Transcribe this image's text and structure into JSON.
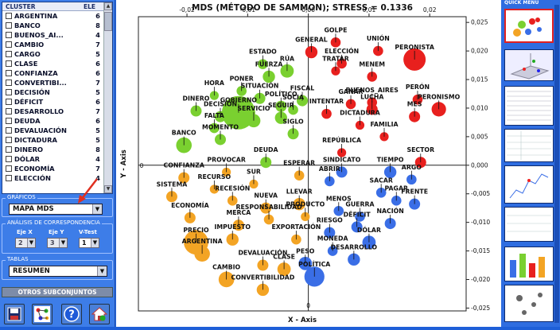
{
  "list": {
    "col_cluster": "CLUSTER",
    "col_ele": "ELE",
    "items": [
      {
        "name": "ARGENTINA",
        "count": "6"
      },
      {
        "name": "BANCO",
        "count": "8"
      },
      {
        "name": "BUENOS_AI...",
        "count": "4"
      },
      {
        "name": "CAMBIO",
        "count": "7"
      },
      {
        "name": "CARGO",
        "count": "5"
      },
      {
        "name": "CLASE",
        "count": "6"
      },
      {
        "name": "CONFIANZA",
        "count": "6"
      },
      {
        "name": "CONVERTIBI...",
        "count": "7"
      },
      {
        "name": "DECISIÓN",
        "count": "5"
      },
      {
        "name": "DÉFICIT",
        "count": "6"
      },
      {
        "name": "DESARROLLO",
        "count": "7"
      },
      {
        "name": "DEUDA",
        "count": "6"
      },
      {
        "name": "DEVALUACIÓN",
        "count": "5"
      },
      {
        "name": "DICTADURA",
        "count": "5"
      },
      {
        "name": "DINERO",
        "count": "8"
      },
      {
        "name": "DÓLAR",
        "count": "4"
      },
      {
        "name": "ECONOMÍA",
        "count": "7"
      },
      {
        "name": "ELECCIÓN",
        "count": "4"
      }
    ]
  },
  "graficos": {
    "title": "GRÁFICOS",
    "value": "MAPA  MDS"
  },
  "analisis": {
    "title": "ANÁLISIS DE CORRESPONDENCIA",
    "eje_x_label": "Eje X",
    "eje_y_label": "Eje Y",
    "vtest_label": "V-Test",
    "eje_x": "2",
    "eje_y": "3",
    "vtest": "1"
  },
  "tablas": {
    "title": "TABLAS",
    "value": "RESUMEN"
  },
  "otros_button": "OTROS SUBCONJUNTOS",
  "quick_menu": "QUICK MENU",
  "colors": {
    "red": "#e8201e",
    "green": "#7ad030",
    "orange": "#f3a424",
    "blue": "#3a6ee6",
    "accent": "#e03020"
  },
  "chart_data": {
    "type": "scatter",
    "title": "MDS (MÉTODO DE SAMMON); STRESS = 0.1336",
    "xlabel": "X - Axis",
    "ylabel": "Y - Axis",
    "xlim": [
      -0.028,
      0.026
    ],
    "ylim": [
      -0.0255,
      0.026
    ],
    "xticks": [
      {
        "v": -0.02,
        "t": "-0,02"
      },
      {
        "v": -0.01,
        "t": "-0,01"
      },
      {
        "v": 0,
        "t": "0,00"
      },
      {
        "v": 0.01,
        "t": "0,01"
      },
      {
        "v": 0.02,
        "t": "0,02"
      }
    ],
    "yticks": [
      {
        "v": 0.025,
        "t": "0,025"
      },
      {
        "v": 0.02,
        "t": "0,020"
      },
      {
        "v": 0.015,
        "t": "0,015"
      },
      {
        "v": 0.01,
        "t": "0,010"
      },
      {
        "v": 0.005,
        "t": "0,005"
      },
      {
        "v": 0,
        "t": "0,000"
      },
      {
        "v": -0.005,
        "t": "-0,005"
      },
      {
        "v": -0.01,
        "t": "-0,010"
      },
      {
        "v": -0.015,
        "t": "-0,015"
      },
      {
        "v": -0.02,
        "t": "-0,020"
      },
      {
        "v": -0.025,
        "t": "-0,025"
      }
    ],
    "points": [
      {
        "label": "ESTADO",
        "x": -0.0075,
        "y": 0.0177,
        "s": 0.9,
        "c": "green"
      },
      {
        "label": "RÚA",
        "x": -0.0035,
        "y": 0.0165,
        "s": 1.2,
        "c": "green"
      },
      {
        "label": "FUERZA",
        "x": -0.0065,
        "y": 0.0155,
        "s": 1.1,
        "c": "green"
      },
      {
        "label": "PONER",
        "x": -0.011,
        "y": 0.013,
        "s": 0.9,
        "c": "green"
      },
      {
        "label": "HORA",
        "x": -0.0155,
        "y": 0.0122,
        "s": 0.8,
        "c": "green"
      },
      {
        "label": "SITUACIÓN",
        "x": -0.008,
        "y": 0.0117,
        "s": 1.0,
        "c": "green"
      },
      {
        "label": "GOBIERNO",
        "x": -0.0115,
        "y": 0.0092,
        "s": 3.0,
        "c": "green"
      },
      {
        "label": "POLÍTICO",
        "x": -0.0045,
        "y": 0.0103,
        "s": 1.0,
        "c": "green"
      },
      {
        "label": "FISCAL",
        "x": -0.001,
        "y": 0.0113,
        "s": 1.0,
        "c": "green"
      },
      {
        "label": "SOCIA",
        "x": -0.0025,
        "y": 0.0097,
        "s": 0.9,
        "c": "green"
      },
      {
        "label": "DINERO",
        "x": -0.0185,
        "y": 0.0095,
        "s": 1.0,
        "c": "green"
      },
      {
        "label": "DECISIÓN",
        "x": -0.0145,
        "y": 0.0085,
        "s": 1.0,
        "c": "green"
      },
      {
        "label": "FALTA",
        "x": -0.0155,
        "y": 0.0065,
        "s": 0.9,
        "c": "green"
      },
      {
        "label": "SERVICIO",
        "x": -0.009,
        "y": 0.0078,
        "s": 1.2,
        "c": "green"
      },
      {
        "label": "SEGUIR",
        "x": -0.0045,
        "y": 0.0083,
        "s": 1.1,
        "c": "green"
      },
      {
        "label": "BANCO",
        "x": -0.0205,
        "y": 0.0035,
        "s": 1.4,
        "c": "green"
      },
      {
        "label": "MOMENTO",
        "x": -0.0145,
        "y": 0.0045,
        "s": 1.0,
        "c": "green"
      },
      {
        "label": "SIGLO",
        "x": -0.0025,
        "y": 0.0055,
        "s": 1.0,
        "c": "green"
      },
      {
        "label": "DEUDA",
        "x": -0.007,
        "y": 0.0005,
        "s": 1.0,
        "c": "green"
      },
      {
        "label": "GOLPE",
        "x": 0.0045,
        "y": 0.0215,
        "s": 0.9,
        "c": "red"
      },
      {
        "label": "GENERAL",
        "x": 0.0005,
        "y": 0.0198,
        "s": 1.1,
        "c": "red"
      },
      {
        "label": "UNIÓN",
        "x": 0.0115,
        "y": 0.02,
        "s": 0.9,
        "c": "red"
      },
      {
        "label": "PERONISTA",
        "x": 0.0175,
        "y": 0.0185,
        "s": 2.0,
        "c": "red"
      },
      {
        "label": "ELECCIÓN",
        "x": 0.0055,
        "y": 0.0178,
        "s": 0.9,
        "c": "red"
      },
      {
        "label": "TRATAR",
        "x": 0.0045,
        "y": 0.0165,
        "s": 0.8,
        "c": "red"
      },
      {
        "label": "MENEM",
        "x": 0.0105,
        "y": 0.0155,
        "s": 0.9,
        "c": "red"
      },
      {
        "label": "PERÓN",
        "x": 0.018,
        "y": 0.0115,
        "s": 0.9,
        "c": "red"
      },
      {
        "label": "PERONISMO",
        "x": 0.0215,
        "y": 0.0098,
        "s": 1.3,
        "c": "red"
      },
      {
        "label": "BUENOS_AIRES",
        "x": 0.0105,
        "y": 0.011,
        "s": 0.9,
        "c": "red"
      },
      {
        "label": "GANAR",
        "x": 0.007,
        "y": 0.0107,
        "s": 0.9,
        "c": "red"
      },
      {
        "label": "INTENTAR",
        "x": 0.003,
        "y": 0.009,
        "s": 0.9,
        "c": "red"
      },
      {
        "label": "LUCHA",
        "x": 0.0105,
        "y": 0.0098,
        "s": 1.0,
        "c": "red"
      },
      {
        "label": "MES",
        "x": 0.0175,
        "y": 0.0085,
        "s": 1.0,
        "c": "red"
      },
      {
        "label": "DICTADURA",
        "x": 0.0085,
        "y": 0.007,
        "s": 0.8,
        "c": "red"
      },
      {
        "label": "FAMILIA",
        "x": 0.0125,
        "y": 0.005,
        "s": 0.8,
        "c": "red"
      },
      {
        "label": "REPÚBLICA",
        "x": 0.0055,
        "y": 0.0022,
        "s": 0.8,
        "c": "red"
      },
      {
        "label": "SECTOR",
        "x": 0.0185,
        "y": 0.0005,
        "s": 1.0,
        "c": "red"
      },
      {
        "label": "PROVOCAR",
        "x": -0.0135,
        "y": -0.0012,
        "s": 0.8,
        "c": "orange"
      },
      {
        "label": "CONFIANZA",
        "x": -0.0205,
        "y": -0.0022,
        "s": 1.0,
        "c": "orange"
      },
      {
        "label": "RECURSO",
        "x": -0.0155,
        "y": -0.0042,
        "s": 0.8,
        "c": "orange"
      },
      {
        "label": "SUR",
        "x": -0.009,
        "y": -0.0033,
        "s": 0.8,
        "c": "orange"
      },
      {
        "label": "ESPERAR",
        "x": -0.0015,
        "y": -0.0018,
        "s": 0.9,
        "c": "orange"
      },
      {
        "label": "SISTEMA",
        "x": -0.0225,
        "y": -0.0055,
        "s": 1.0,
        "c": "orange"
      },
      {
        "label": "RECESIÓN",
        "x": -0.0125,
        "y": -0.0062,
        "s": 0.9,
        "c": "orange"
      },
      {
        "label": "ECONOMÍA",
        "x": -0.0195,
        "y": -0.0092,
        "s": 1.0,
        "c": "orange"
      },
      {
        "label": "NUEVA",
        "x": -0.007,
        "y": -0.0075,
        "s": 1.0,
        "c": "orange"
      },
      {
        "label": "LLEVAR",
        "x": -0.0015,
        "y": -0.0068,
        "s": 1.1,
        "c": "orange"
      },
      {
        "label": "MERCA",
        "x": -0.0115,
        "y": -0.0105,
        "s": 1.0,
        "c": "orange"
      },
      {
        "label": "RESPONSABILIDAD",
        "x": -0.0065,
        "y": -0.0095,
        "s": 0.9,
        "c": "orange"
      },
      {
        "label": "PRODUCTO",
        "x": -0.0005,
        "y": -0.009,
        "s": 0.8,
        "c": "orange"
      },
      {
        "label": "PRECIO",
        "x": -0.0185,
        "y": -0.0135,
        "s": 2.2,
        "c": "orange"
      },
      {
        "label": "IMPUESTO",
        "x": -0.0125,
        "y": -0.013,
        "s": 1.1,
        "c": "orange"
      },
      {
        "label": "ARGENTINA",
        "x": -0.0175,
        "y": -0.0155,
        "s": 1.4,
        "c": "orange"
      },
      {
        "label": "EXPORTACIÓN",
        "x": -0.002,
        "y": -0.013,
        "s": 0.9,
        "c": "orange"
      },
      {
        "label": "DEVALUACIÓN",
        "x": -0.0075,
        "y": -0.0175,
        "s": 1.0,
        "c": "orange"
      },
      {
        "label": "CLASE",
        "x": -0.004,
        "y": -0.0182,
        "s": 1.2,
        "c": "orange"
      },
      {
        "label": "CAMBIO",
        "x": -0.0135,
        "y": -0.02,
        "s": 1.4,
        "c": "orange"
      },
      {
        "label": "CONVERTIBILIDAD",
        "x": -0.0075,
        "y": -0.0218,
        "s": 1.1,
        "c": "orange"
      },
      {
        "label": "SINDICATO",
        "x": 0.0055,
        "y": -0.0012,
        "s": 1.0,
        "c": "blue"
      },
      {
        "label": "TIEMPO",
        "x": 0.0135,
        "y": -0.0012,
        "s": 1.1,
        "c": "blue"
      },
      {
        "label": "ABRIR",
        "x": 0.0035,
        "y": -0.0028,
        "s": 0.9,
        "c": "blue"
      },
      {
        "label": "ARGO",
        "x": 0.017,
        "y": -0.0025,
        "s": 0.9,
        "c": "blue"
      },
      {
        "label": "SACAR",
        "x": 0.012,
        "y": -0.0048,
        "s": 0.9,
        "c": "blue"
      },
      {
        "label": "PAGAR",
        "x": 0.0145,
        "y": -0.0062,
        "s": 0.9,
        "c": "blue"
      },
      {
        "label": "FRENTE",
        "x": 0.0175,
        "y": -0.0068,
        "s": 1.0,
        "c": "blue"
      },
      {
        "label": "MENOS",
        "x": 0.005,
        "y": -0.008,
        "s": 0.9,
        "c": "blue"
      },
      {
        "label": "GUERRA",
        "x": 0.0085,
        "y": -0.009,
        "s": 0.9,
        "c": "blue"
      },
      {
        "label": "DÉFICIT",
        "x": 0.008,
        "y": -0.0108,
        "s": 1.0,
        "c": "blue"
      },
      {
        "label": "NACIÓN",
        "x": 0.0135,
        "y": -0.0102,
        "s": 1.0,
        "c": "blue"
      },
      {
        "label": "RIESGO",
        "x": 0.0035,
        "y": -0.0118,
        "s": 1.0,
        "c": "blue"
      },
      {
        "label": "DÓLAR",
        "x": 0.01,
        "y": -0.0135,
        "s": 1.2,
        "c": "blue"
      },
      {
        "label": "MONEDA",
        "x": 0.004,
        "y": -0.015,
        "s": 0.9,
        "c": "blue"
      },
      {
        "label": "DESARROLLO",
        "x": 0.0075,
        "y": -0.0165,
        "s": 1.1,
        "c": "blue"
      },
      {
        "label": "PESO",
        "x": -0.0005,
        "y": -0.0172,
        "s": 1.2,
        "c": "blue"
      },
      {
        "label": "POLÍTICA",
        "x": 0.001,
        "y": -0.0195,
        "s": 1.8,
        "c": "blue"
      }
    ]
  }
}
